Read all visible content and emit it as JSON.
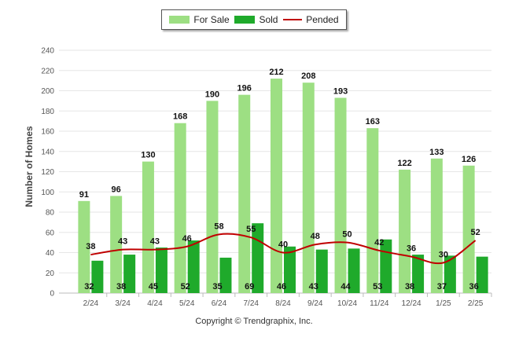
{
  "chart_data": {
    "type": "bar",
    "ylabel": "Number of Homes",
    "ylim": [
      0,
      240
    ],
    "yticks": [
      0,
      20,
      40,
      60,
      80,
      100,
      120,
      140,
      160,
      180,
      200,
      220,
      240
    ],
    "categories": [
      "2/24",
      "3/24",
      "4/24",
      "5/24",
      "6/24",
      "7/24",
      "8/24",
      "9/24",
      "10/24",
      "11/24",
      "12/24",
      "1/25",
      "2/25"
    ],
    "series": [
      {
        "name": "For Sale",
        "type": "bar",
        "color": "#9ddf83",
        "values": [
          91,
          96,
          130,
          168,
          190,
          196,
          212,
          208,
          193,
          163,
          122,
          133,
          126
        ]
      },
      {
        "name": "Sold",
        "type": "bar",
        "color": "#1faa2b",
        "values": [
          32,
          38,
          45,
          52,
          35,
          69,
          46,
          43,
          44,
          53,
          38,
          37,
          36
        ]
      },
      {
        "name": "Pended",
        "type": "line",
        "color": "#c00000",
        "values": [
          38,
          43,
          43,
          46,
          58,
          55,
          40,
          48,
          50,
          42,
          36,
          30,
          52
        ]
      }
    ],
    "legend_position": "top-center",
    "grid": true
  },
  "footer": {
    "copyright": "Copyright © Trendgraphix, Inc."
  }
}
